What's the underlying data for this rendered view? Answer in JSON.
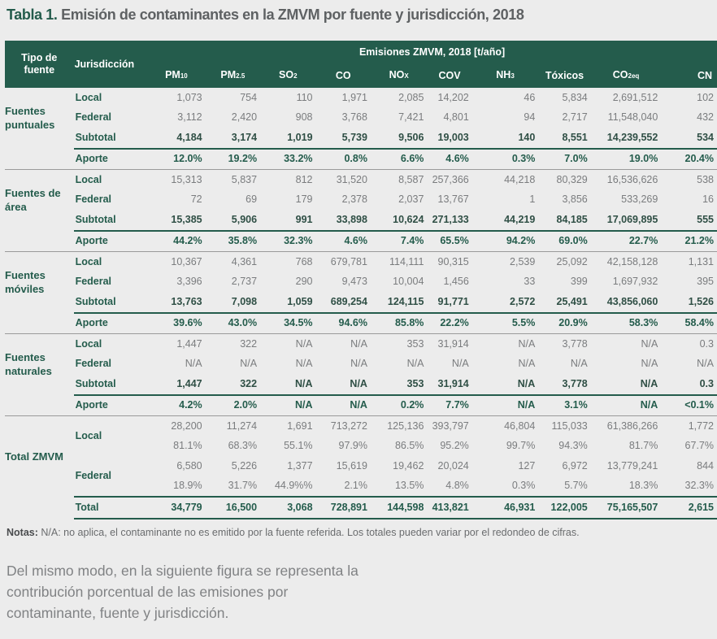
{
  "title": {
    "label": "Tabla 1.",
    "text": "Emisión de contaminantes en la ZMVM por fuente y jurisdicción, 2018"
  },
  "header": {
    "tipo": "Tipo de fuente",
    "jurisdiccion": "Jurisdicción",
    "emisiones": "Emisiones ZMVM, 2018 [t/año]",
    "columns": [
      [
        "PM",
        "10"
      ],
      [
        "PM",
        "2.5"
      ],
      [
        "SO",
        "2"
      ],
      [
        "CO",
        ""
      ],
      [
        "NO",
        "X"
      ],
      [
        "COV",
        ""
      ],
      [
        "NH",
        "3"
      ],
      [
        "Tóxicos",
        ""
      ],
      [
        "CO",
        "2eq"
      ],
      [
        "CN",
        ""
      ]
    ]
  },
  "groups": [
    {
      "name": "Fuentes puntuales",
      "rows": [
        {
          "label": "Local",
          "type": "n",
          "values": [
            "1,073",
            "754",
            "110",
            "1,971",
            "2,085",
            "14,202",
            "46",
            "5,834",
            "2,691,512",
            "102"
          ]
        },
        {
          "label": "Federal",
          "type": "n",
          "values": [
            "3,112",
            "2,420",
            "908",
            "3,768",
            "7,421",
            "4,801",
            "94",
            "2,717",
            "11,548,040",
            "432"
          ]
        },
        {
          "label": "Subtotal",
          "type": "b",
          "values": [
            "4,184",
            "3,174",
            "1,019",
            "5,739",
            "9,506",
            "19,003",
            "140",
            "8,551",
            "14,239,552",
            "534"
          ]
        },
        {
          "label": "Aporte",
          "type": "ap",
          "values": [
            "12.0%",
            "19.2%",
            "33.2%",
            "0.8%",
            "6.6%",
            "4.6%",
            "0.3%",
            "7.0%",
            "19.0%",
            "20.4%"
          ]
        }
      ]
    },
    {
      "name": "Fuentes de área",
      "rows": [
        {
          "label": "Local",
          "type": "n",
          "values": [
            "15,313",
            "5,837",
            "812",
            "31,520",
            "8,587",
            "257,366",
            "44,218",
            "80,329",
            "16,536,626",
            "538"
          ]
        },
        {
          "label": "Federal",
          "type": "n",
          "values": [
            "72",
            "69",
            "179",
            "2,378",
            "2,037",
            "13,767",
            "1",
            "3,856",
            "533,269",
            "16"
          ]
        },
        {
          "label": "Subtotal",
          "type": "b",
          "values": [
            "15,385",
            "5,906",
            "991",
            "33,898",
            "10,624",
            "271,133",
            "44,219",
            "84,185",
            "17,069,895",
            "555"
          ]
        },
        {
          "label": "Aporte",
          "type": "ap",
          "values": [
            "44.2%",
            "35.8%",
            "32.3%",
            "4.6%",
            "7.4%",
            "65.5%",
            "94.2%",
            "69.0%",
            "22.7%",
            "21.2%"
          ]
        }
      ]
    },
    {
      "name": "Fuentes móviles",
      "rows": [
        {
          "label": "Local",
          "type": "n",
          "values": [
            "10,367",
            "4,361",
            "768",
            "679,781",
            "114,111",
            "90,315",
            "2,539",
            "25,092",
            "42,158,128",
            "1,131"
          ]
        },
        {
          "label": "Federal",
          "type": "n",
          "values": [
            "3,396",
            "2,737",
            "290",
            "9,473",
            "10,004",
            "1,456",
            "33",
            "399",
            "1,697,932",
            "395"
          ]
        },
        {
          "label": "Subtotal",
          "type": "b",
          "values": [
            "13,763",
            "7,098",
            "1,059",
            "689,254",
            "124,115",
            "91,771",
            "2,572",
            "25,491",
            "43,856,060",
            "1,526"
          ]
        },
        {
          "label": "Aporte",
          "type": "ap",
          "values": [
            "39.6%",
            "43.0%",
            "34.5%",
            "94.6%",
            "85.8%",
            "22.2%",
            "5.5%",
            "20.9%",
            "58.3%",
            "58.4%"
          ]
        }
      ]
    },
    {
      "name": "Fuentes naturales",
      "rows": [
        {
          "label": "Local",
          "type": "n",
          "values": [
            "1,447",
            "322",
            "N/A",
            "N/A",
            "353",
            "31,914",
            "N/A",
            "3,778",
            "N/A",
            "0.3"
          ]
        },
        {
          "label": "Federal",
          "type": "n",
          "values": [
            "N/A",
            "N/A",
            "N/A",
            "N/A",
            "N/A",
            "N/A",
            "N/A",
            "N/A",
            "N/A",
            "N/A"
          ]
        },
        {
          "label": "Subtotal",
          "type": "b",
          "values": [
            "1,447",
            "322",
            "N/A",
            "N/A",
            "353",
            "31,914",
            "N/A",
            "3,778",
            "N/A",
            "0.3"
          ]
        },
        {
          "label": "Aporte",
          "type": "ap",
          "values": [
            "4.2%",
            "2.0%",
            "N/A",
            "N/A",
            "0.2%",
            "7.7%",
            "N/A",
            "3.1%",
            "N/A",
            "<0.1%"
          ]
        }
      ]
    }
  ],
  "total": {
    "name": "Total ZMVM",
    "local": {
      "label": "Local",
      "values": [
        "28,200",
        "11,274",
        "1,691",
        "713,272",
        "125,136",
        "393,797",
        "46,804",
        "115,033",
        "61,386,266",
        "1,772"
      ],
      "pct": [
        "81.1%",
        "68.3%",
        "55.1%",
        "97.9%",
        "86.5%",
        "95.2%",
        "99.7%",
        "94.3%",
        "81.7%",
        "67.7%"
      ]
    },
    "federal": {
      "label": "Federal",
      "values": [
        "6,580",
        "5,226",
        "1,377",
        "15,619",
        "19,462",
        "20,024",
        "127",
        "6,972",
        "13,779,241",
        "844"
      ],
      "pct": [
        "18.9%",
        "31.7%",
        "44.9%%",
        "2.1%",
        "13.5%",
        "4.8%",
        "0.3%",
        "5.7%",
        "18.3%",
        "32.3%"
      ]
    },
    "total": {
      "label": "Total",
      "values": [
        "34,779",
        "16,500",
        "3,068",
        "728,891",
        "144,598",
        "413,821",
        "46,931",
        "122,005",
        "75,165,507",
        "2,615"
      ]
    }
  },
  "notes": {
    "label": "Notas:",
    "text": " N/A: no aplica, el contaminante no es emitido por la fuente referida. Los totales pueden variar por el redondeo de cifras."
  },
  "paragraph": "Del mismo modo, en la siguiente figura se representa la contribución porcentual de las emisiones por contaminante, fuente y jurisdicción."
}
